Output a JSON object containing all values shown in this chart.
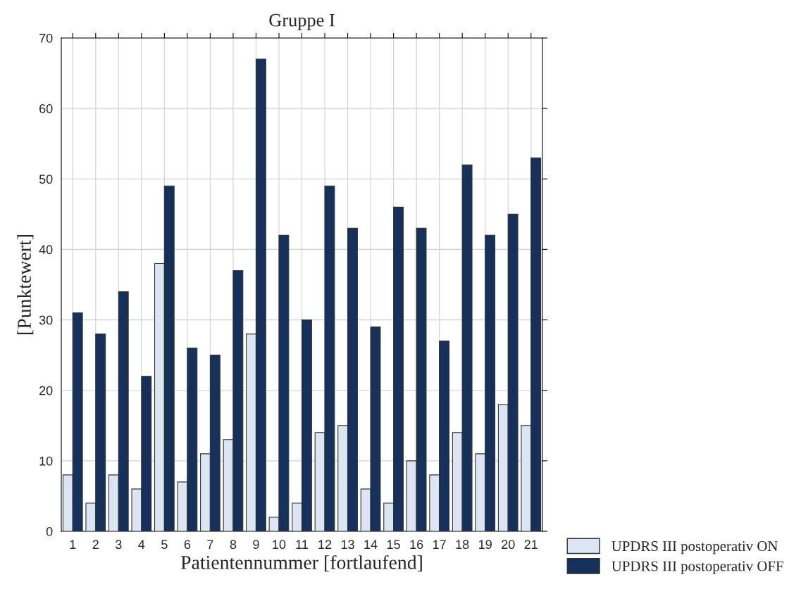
{
  "chart_data": {
    "type": "bar",
    "title": "Gruppe I",
    "xlabel": "Patientennummer [fortlaufend]",
    "ylabel": "[Punktewert]",
    "categories": [
      "1",
      "2",
      "3",
      "4",
      "5",
      "6",
      "7",
      "8",
      "9",
      "10",
      "11",
      "12",
      "13",
      "14",
      "15",
      "16",
      "17",
      "18",
      "19",
      "20",
      "21"
    ],
    "series": [
      {
        "name": "UPDRS III postoperativ ON",
        "color": "#dce6f2",
        "values": [
          8,
          4,
          8,
          6,
          38,
          7,
          11,
          13,
          28,
          2,
          4,
          14,
          15,
          6,
          4,
          10,
          8,
          14,
          11,
          18,
          15
        ]
      },
      {
        "name": "UPDRS III postoperativ OFF",
        "color": "#15305a",
        "values": [
          31,
          28,
          34,
          22,
          49,
          26,
          25,
          37,
          67,
          42,
          30,
          49,
          43,
          29,
          46,
          43,
          27,
          52,
          42,
          45,
          53
        ]
      }
    ],
    "ylim": [
      0,
      70
    ],
    "yticks": [
      0,
      10,
      20,
      30,
      40,
      50,
      60,
      70
    ],
    "grid": true,
    "legend": "bottom right"
  }
}
